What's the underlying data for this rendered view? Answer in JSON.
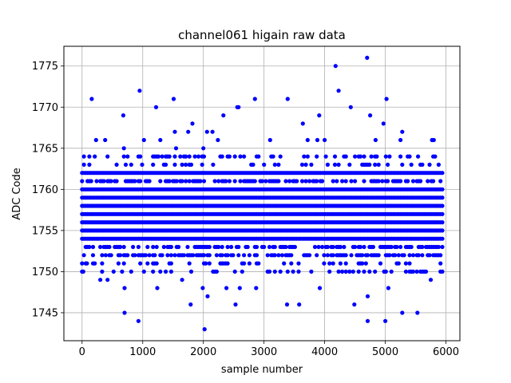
{
  "chart_data": {
    "type": "scatter",
    "title": "channel061 higain raw data",
    "xlabel": "sample number",
    "ylabel": "ADC Code",
    "xlim": [
      -300,
      6230
    ],
    "ylim": [
      1741.6,
      1777.4
    ],
    "xticks": [
      0,
      1000,
      2000,
      3000,
      4000,
      5000,
      6000
    ],
    "yticks": [
      1745,
      1750,
      1755,
      1760,
      1765,
      1770,
      1775
    ],
    "grid": true,
    "marker_color": "#0000ff",
    "x_range": [
      0,
      5940
    ],
    "dense_levels": [
      1754,
      1755,
      1756,
      1757,
      1758,
      1759,
      1760,
      1762
    ],
    "medium_levels": [
      1752,
      1753,
      1761
    ],
    "sparse_levels": [
      1750,
      1751,
      1763,
      1764
    ],
    "outliers": [
      {
        "x": 20,
        "y": 1750
      },
      {
        "x": 80,
        "y": 1751
      },
      {
        "x": 120,
        "y": 1764
      },
      {
        "x": 160,
        "y": 1771
      },
      {
        "x": 230,
        "y": 1766
      },
      {
        "x": 300,
        "y": 1749
      },
      {
        "x": 380,
        "y": 1766
      },
      {
        "x": 420,
        "y": 1749
      },
      {
        "x": 520,
        "y": 1750
      },
      {
        "x": 680,
        "y": 1769
      },
      {
        "x": 690,
        "y": 1765
      },
      {
        "x": 700,
        "y": 1748
      },
      {
        "x": 700,
        "y": 1745
      },
      {
        "x": 930,
        "y": 1744
      },
      {
        "x": 950,
        "y": 1772
      },
      {
        "x": 1020,
        "y": 1766
      },
      {
        "x": 1220,
        "y": 1770
      },
      {
        "x": 1240,
        "y": 1748
      },
      {
        "x": 1290,
        "y": 1766
      },
      {
        "x": 1510,
        "y": 1771
      },
      {
        "x": 1530,
        "y": 1767
      },
      {
        "x": 1550,
        "y": 1765
      },
      {
        "x": 1650,
        "y": 1749
      },
      {
        "x": 1750,
        "y": 1767
      },
      {
        "x": 1790,
        "y": 1746
      },
      {
        "x": 1820,
        "y": 1768
      },
      {
        "x": 1990,
        "y": 1748
      },
      {
        "x": 2000,
        "y": 1765
      },
      {
        "x": 2020,
        "y": 1743
      },
      {
        "x": 2060,
        "y": 1767
      },
      {
        "x": 2070,
        "y": 1747
      },
      {
        "x": 2150,
        "y": 1767
      },
      {
        "x": 2240,
        "y": 1766
      },
      {
        "x": 2330,
        "y": 1769
      },
      {
        "x": 2380,
        "y": 1748
      },
      {
        "x": 2530,
        "y": 1746
      },
      {
        "x": 2560,
        "y": 1770
      },
      {
        "x": 2580,
        "y": 1770
      },
      {
        "x": 2600,
        "y": 1748
      },
      {
        "x": 2850,
        "y": 1771
      },
      {
        "x": 2870,
        "y": 1748
      },
      {
        "x": 3100,
        "y": 1766
      },
      {
        "x": 3380,
        "y": 1746
      },
      {
        "x": 3390,
        "y": 1771
      },
      {
        "x": 3580,
        "y": 1746
      },
      {
        "x": 3640,
        "y": 1768
      },
      {
        "x": 3720,
        "y": 1766
      },
      {
        "x": 3880,
        "y": 1766
      },
      {
        "x": 3910,
        "y": 1769
      },
      {
        "x": 3920,
        "y": 1748
      },
      {
        "x": 4000,
        "y": 1766
      },
      {
        "x": 4180,
        "y": 1775
      },
      {
        "x": 4230,
        "y": 1772
      },
      {
        "x": 4430,
        "y": 1770
      },
      {
        "x": 4490,
        "y": 1746
      },
      {
        "x": 4700,
        "y": 1776
      },
      {
        "x": 4710,
        "y": 1747
      },
      {
        "x": 4710,
        "y": 1744
      },
      {
        "x": 4750,
        "y": 1769
      },
      {
        "x": 4840,
        "y": 1766
      },
      {
        "x": 4970,
        "y": 1768
      },
      {
        "x": 5000,
        "y": 1744
      },
      {
        "x": 5020,
        "y": 1771
      },
      {
        "x": 5050,
        "y": 1748
      },
      {
        "x": 5250,
        "y": 1766
      },
      {
        "x": 5280,
        "y": 1767
      },
      {
        "x": 5280,
        "y": 1745
      },
      {
        "x": 5400,
        "y": 1764
      },
      {
        "x": 5530,
        "y": 1745
      },
      {
        "x": 5540,
        "y": 1764
      },
      {
        "x": 5750,
        "y": 1749
      },
      {
        "x": 5770,
        "y": 1766
      },
      {
        "x": 5800,
        "y": 1766
      },
      {
        "x": 5940,
        "y": 1750
      }
    ]
  }
}
